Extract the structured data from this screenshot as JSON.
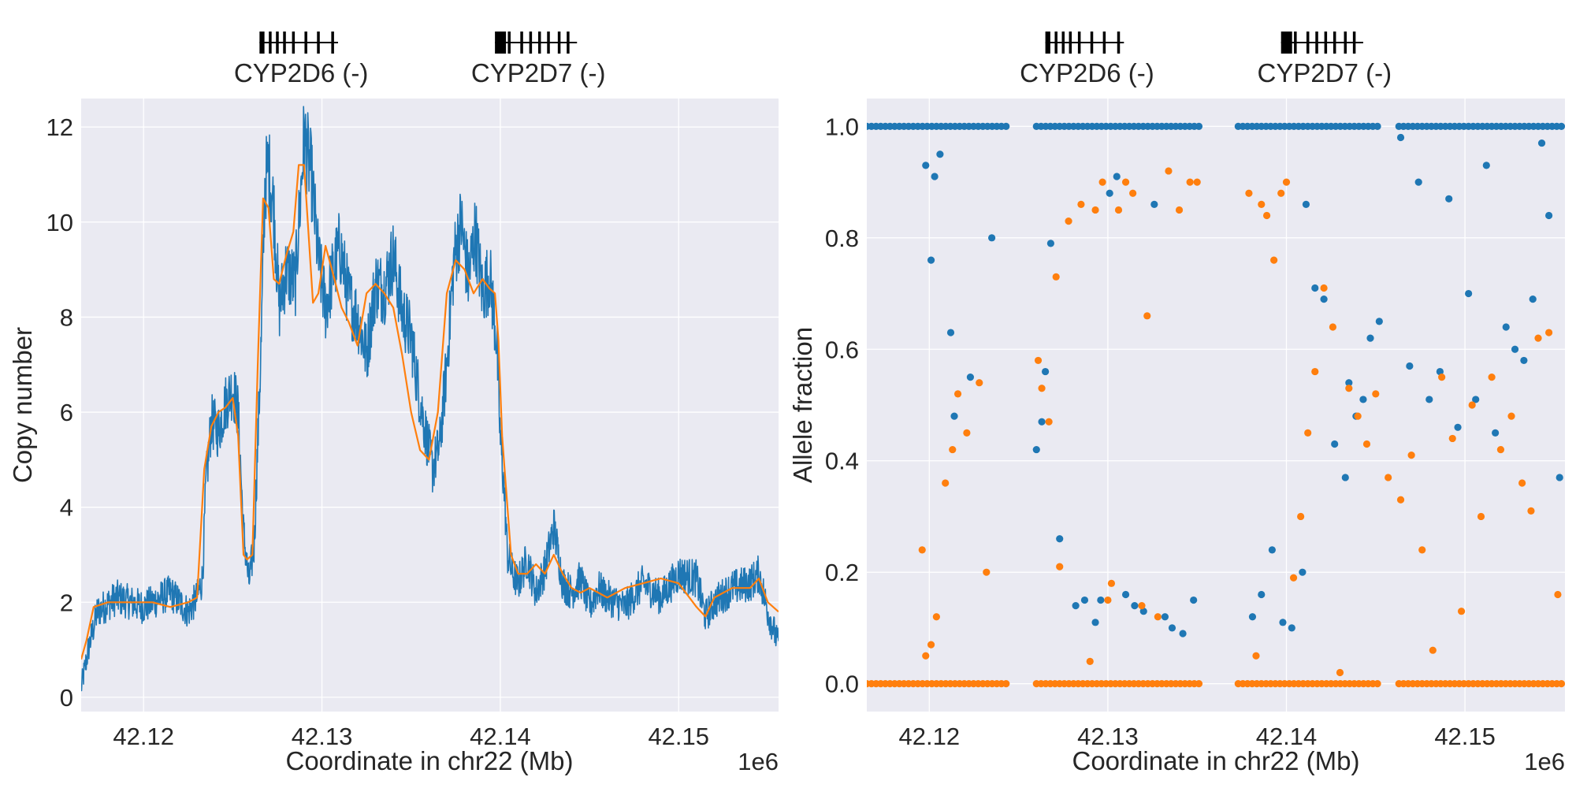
{
  "figure": {
    "background": "#ffffff",
    "axes_background": "#eaeaf2",
    "grid_color": "#ffffff",
    "series_colors": [
      "#1f77b4",
      "#ff7f0e"
    ]
  },
  "genes": [
    {
      "label": "CYP2D6 (-)",
      "start": 42126500,
      "end": 42130900,
      "exons": [
        42126500,
        42126700,
        42127100,
        42127500,
        42127900,
        42128400,
        42129100,
        42129800,
        42130600
      ]
    },
    {
      "label": "CYP2D7 (-)",
      "start": 42139700,
      "end": 42144300,
      "exons": [
        42139700,
        42140500,
        42141200,
        42141700,
        42142200,
        42142700,
        42143300,
        42143800
      ]
    }
  ],
  "chart_data": [
    {
      "type": "line",
      "title": "",
      "xlabel": "Coordinate in chr22 (Mb)",
      "ylabel": "Copy number",
      "x_offset_label": "1e6",
      "x_unit_scale": 1000000,
      "xlim": [
        42116500,
        42155600
      ],
      "ylim": [
        -0.3,
        12.6
      ],
      "xticks": [
        42120000,
        42130000,
        42140000,
        42150000
      ],
      "xtick_labels": [
        "42.12",
        "42.13",
        "42.14",
        "42.15"
      ],
      "yticks": [
        0,
        2,
        4,
        6,
        8,
        10,
        12
      ],
      "ytick_labels": [
        "0",
        "2",
        "4",
        "6",
        "8",
        "10",
        "12"
      ],
      "grid": true,
      "series": [
        {
          "role": "raw",
          "color": "#1f77b4",
          "x": [
            42116500,
            42116900,
            42117400,
            42118500,
            42120000,
            42121500,
            42122500,
            42123000,
            42123300,
            42123500,
            42123800,
            42124200,
            42124600,
            42125000,
            42125300,
            42125600,
            42125900,
            42126200,
            42126600,
            42126800,
            42127000,
            42127300,
            42127600,
            42128000,
            42128500,
            42129000,
            42129400,
            42129800,
            42130200,
            42130600,
            42131000,
            42131500,
            42132000,
            42132500,
            42133000,
            42133500,
            42134000,
            42134500,
            42135000,
            42135400,
            42135800,
            42136200,
            42136600,
            42137000,
            42137400,
            42137800,
            42138200,
            42138600,
            42139000,
            42139400,
            42139800,
            42140000,
            42140200,
            42140400,
            42140700,
            42141000,
            42141500,
            42142000,
            42142500,
            42143000,
            42143500,
            42144000,
            42144500,
            42145000,
            42145500,
            42146000,
            42147000,
            42148000,
            42149000,
            42150000,
            42151000,
            42151500,
            42152000,
            42153000,
            42154000,
            42154500,
            42155000,
            42155600
          ],
          "y": [
            0.2,
            1.0,
            1.8,
            2.1,
            1.9,
            2.2,
            1.8,
            2.1,
            2.5,
            4.5,
            5.8,
            5.6,
            6.2,
            6.5,
            6.0,
            3.5,
            2.4,
            3.2,
            7.5,
            10.8,
            11.2,
            10.3,
            8.2,
            9.0,
            8.7,
            11.8,
            11.0,
            9.2,
            8.2,
            8.9,
            9.5,
            8.4,
            8.0,
            7.2,
            8.7,
            8.6,
            9.3,
            8.1,
            7.6,
            6.5,
            5.6,
            4.8,
            5.3,
            7.0,
            9.2,
            10.0,
            8.8,
            9.8,
            8.5,
            8.9,
            7.5,
            5.4,
            4.5,
            3.0,
            2.6,
            2.4,
            2.9,
            2.2,
            2.7,
            3.6,
            2.4,
            2.2,
            2.5,
            1.9,
            2.3,
            2.1,
            1.9,
            2.4,
            2.1,
            2.6,
            2.5,
            1.7,
            2.0,
            2.3,
            2.4,
            2.6,
            1.8,
            1.1
          ]
        },
        {
          "role": "smoothed",
          "color": "#ff7f0e",
          "x": [
            42116500,
            42116800,
            42117200,
            42118000,
            42119500,
            42120500,
            42121500,
            42122500,
            42123000,
            42123400,
            42123800,
            42124200,
            42124600,
            42125000,
            42125300,
            42125600,
            42125800,
            42126100,
            42126400,
            42126700,
            42127000,
            42127300,
            42127600,
            42128000,
            42128400,
            42128700,
            42129000,
            42129500,
            42129800,
            42130200,
            42130700,
            42131100,
            42131500,
            42132000,
            42132500,
            42133000,
            42133500,
            42134000,
            42134500,
            42135000,
            42135500,
            42136000,
            42136500,
            42137000,
            42137500,
            42138000,
            42138500,
            42139000,
            42139400,
            42139700,
            42139900,
            42140100,
            42140300,
            42140600,
            42141000,
            42141500,
            42142000,
            42142500,
            42143000,
            42143500,
            42144000,
            42144500,
            42145000,
            42146000,
            42147000,
            42148000,
            42149000,
            42150000,
            42151000,
            42151500,
            42152000,
            42153000,
            42154000,
            42154500,
            42155000,
            42155600
          ],
          "y": [
            0.8,
            1.2,
            1.9,
            2.0,
            2.0,
            2.0,
            1.9,
            2.0,
            2.1,
            4.8,
            5.7,
            6.0,
            6.1,
            6.3,
            5.5,
            3.0,
            2.9,
            3.0,
            7.0,
            10.5,
            10.3,
            8.8,
            8.7,
            9.3,
            9.8,
            11.2,
            11.2,
            8.3,
            8.5,
            9.5,
            8.8,
            8.2,
            7.9,
            7.4,
            8.5,
            8.7,
            8.5,
            8.2,
            7.2,
            6.0,
            5.2,
            5.0,
            6.0,
            8.5,
            9.2,
            9.0,
            8.5,
            8.8,
            8.6,
            8.5,
            7.5,
            5.5,
            4.5,
            3.0,
            2.6,
            2.6,
            2.8,
            2.6,
            3.0,
            2.6,
            2.3,
            2.2,
            2.3,
            2.1,
            2.3,
            2.4,
            2.5,
            2.4,
            1.9,
            1.7,
            2.1,
            2.3,
            2.3,
            2.5,
            2.0,
            1.8
          ]
        }
      ]
    },
    {
      "type": "scatter",
      "title": "",
      "xlabel": "Coordinate in chr22 (Mb)",
      "ylabel": "Allele fraction",
      "x_offset_label": "1e6",
      "x_unit_scale": 1000000,
      "xlim": [
        42116500,
        42155600
      ],
      "ylim": [
        -0.05,
        1.05
      ],
      "xticks": [
        42120000,
        42130000,
        42140000,
        42150000
      ],
      "xtick_labels": [
        "42.12",
        "42.13",
        "42.14",
        "42.15"
      ],
      "yticks": [
        0.0,
        0.2,
        0.4,
        0.6,
        0.8,
        1.0
      ],
      "ytick_labels": [
        "0.0",
        "0.2",
        "0.4",
        "0.6",
        "0.8",
        "1.0"
      ],
      "grid": true,
      "site_clusters": [
        [
          42116500,
          42124500
        ],
        [
          42126000,
          42135200
        ],
        [
          42137300,
          42145200
        ],
        [
          42146300,
          42155600
        ]
      ],
      "series": [
        {
          "color": "#1f77b4",
          "x": [
            42119800,
            42120100,
            42120300,
            42120600,
            42121200,
            42121400,
            42122300,
            42123500,
            42126000,
            42126300,
            42126500,
            42126800,
            42127300,
            42128200,
            42128700,
            42129300,
            42129600,
            42130100,
            42130500,
            42131000,
            42131500,
            42132000,
            42132600,
            42133200,
            42133600,
            42134200,
            42134800,
            42138100,
            42138600,
            42139200,
            42139800,
            42140300,
            42140900,
            42141100,
            42141600,
            42142100,
            42142700,
            42143300,
            42143500,
            42143900,
            42144300,
            42144700,
            42145200,
            42146400,
            42146900,
            42147400,
            42148000,
            42148600,
            42149100,
            42149600,
            42150200,
            42150600,
            42151200,
            42151700,
            42152300,
            42152800,
            42153300,
            42153800,
            42154300,
            42154700,
            42155300
          ],
          "y": [
            0.93,
            0.76,
            0.91,
            0.95,
            0.63,
            0.48,
            0.55,
            0.8,
            0.42,
            0.47,
            0.56,
            0.79,
            0.26,
            0.14,
            0.15,
            0.11,
            0.15,
            0.88,
            0.91,
            0.16,
            0.14,
            0.13,
            0.86,
            0.12,
            0.1,
            0.09,
            0.15,
            0.12,
            0.16,
            0.24,
            0.11,
            0.1,
            0.2,
            0.86,
            0.71,
            0.69,
            0.43,
            0.37,
            0.54,
            0.48,
            0.51,
            0.62,
            0.65,
            0.98,
            0.57,
            0.9,
            0.51,
            0.56,
            0.87,
            0.46,
            0.7,
            0.51,
            0.93,
            0.45,
            0.64,
            0.6,
            0.58,
            0.69,
            0.97,
            0.84,
            0.37
          ]
        },
        {
          "color": "#ff7f0e",
          "x": [
            42119600,
            42119800,
            42120100,
            42120400,
            42120900,
            42121300,
            42121600,
            42122100,
            42122800,
            42123200,
            42126100,
            42126300,
            42126700,
            42127100,
            42127300,
            42127800,
            42128500,
            42129000,
            42129300,
            42129700,
            42130000,
            42130200,
            42130600,
            42131000,
            42131400,
            42131900,
            42132200,
            42132800,
            42133400,
            42134000,
            42134600,
            42135000,
            42137900,
            42138300,
            42138600,
            42138900,
            42139300,
            42139700,
            42140000,
            42140400,
            42140800,
            42141200,
            42141600,
            42142100,
            42142600,
            42143000,
            42143500,
            42144000,
            42144500,
            42145000,
            42145700,
            42146400,
            42147000,
            42147600,
            42148200,
            42148700,
            42149300,
            42149800,
            42150400,
            42150900,
            42151500,
            42152000,
            42152600,
            42153200,
            42153700,
            42154100,
            42154700,
            42155200
          ],
          "y": [
            0.24,
            0.05,
            0.07,
            0.12,
            0.36,
            0.42,
            0.52,
            0.45,
            0.54,
            0.2,
            0.58,
            0.53,
            0.47,
            0.73,
            0.21,
            0.83,
            0.86,
            0.04,
            0.85,
            0.9,
            0.15,
            0.18,
            0.85,
            0.9,
            0.88,
            0.14,
            0.66,
            0.12,
            0.92,
            0.85,
            0.9,
            0.9,
            0.88,
            0.05,
            0.86,
            0.84,
            0.76,
            0.88,
            0.9,
            0.19,
            0.3,
            0.45,
            0.56,
            0.71,
            0.64,
            0.02,
            0.53,
            0.48,
            0.43,
            0.52,
            0.37,
            0.33,
            0.41,
            0.24,
            0.06,
            0.55,
            0.44,
            0.13,
            0.5,
            0.3,
            0.55,
            0.42,
            0.48,
            0.36,
            0.31,
            0.62,
            0.63,
            0.16
          ]
        }
      ]
    }
  ]
}
